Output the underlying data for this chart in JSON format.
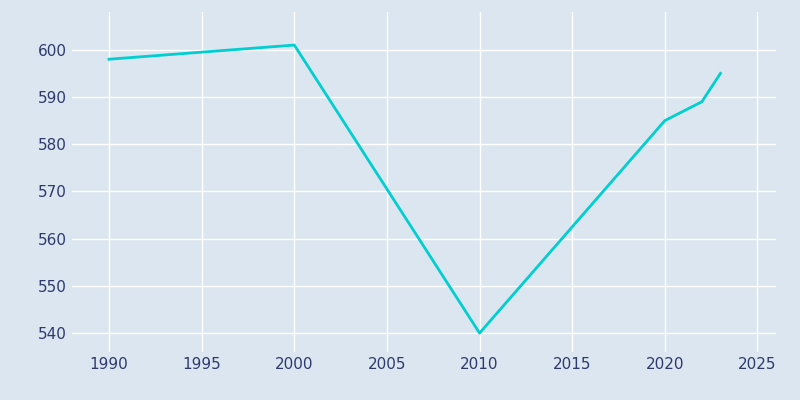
{
  "years": [
    1990,
    2000,
    2010,
    2020,
    2021,
    2022,
    2023
  ],
  "population": [
    598,
    601,
    540,
    585,
    587,
    589,
    595
  ],
  "line_color": "#00CED1",
  "line_width": 2.0,
  "background_color": "#dce6f0",
  "grid_color": "#FFFFFF",
  "tick_label_color": "#2E3A6E",
  "fig_background": "#dce6f0",
  "xlim": [
    1988,
    2026
  ],
  "ylim": [
    536,
    608
  ],
  "xticks": [
    1990,
    1995,
    2000,
    2005,
    2010,
    2015,
    2020,
    2025
  ],
  "yticks": [
    540,
    550,
    560,
    570,
    580,
    590,
    600
  ]
}
